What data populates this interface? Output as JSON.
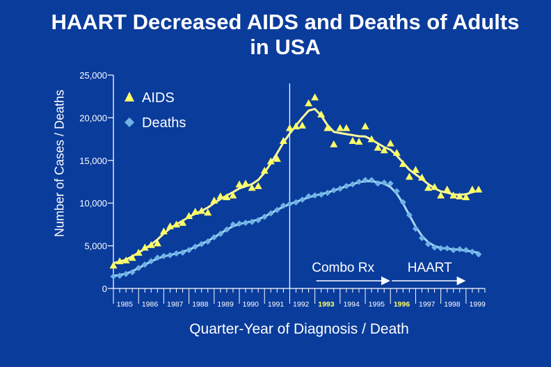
{
  "chart_data": {
    "type": "line",
    "title": "HAART Decreased AIDS and Deaths of Adults in USA",
    "xlabel": "Quarter-Year of Diagnosis / Death",
    "ylabel": "Number of Cases / Deaths",
    "ylim": [
      0,
      25000
    ],
    "xlim": [
      1985,
      1999.75
    ],
    "yticks": [
      "0",
      "5,000",
      "10,000",
      "15,000",
      "20,000",
      "25,000"
    ],
    "ytick_values": [
      0,
      5000,
      10000,
      15000,
      20000,
      25000
    ],
    "xticks": [
      "1985",
      "1986",
      "1987",
      "1988",
      "1989",
      "1990",
      "1991",
      "1992",
      "1993",
      "1994",
      "1995",
      "1996",
      "1997",
      "1998",
      "1999"
    ],
    "highlight_years": [
      "1993",
      "1996"
    ],
    "grid": false,
    "legend_position": "top-left",
    "annotations": [
      {
        "text": "Combo Rx",
        "x_start": 1993.0,
        "x_end": 1995.9
      },
      {
        "text": "HAART",
        "x_start": 1996.0,
        "x_end": 1998.9
      }
    ],
    "vertical_line_x": 1992.0,
    "series": [
      {
        "name": "AIDS",
        "marker": "triangle",
        "color": "#ffff66",
        "x": [
          1985.0,
          1985.25,
          1985.5,
          1985.75,
          1986.0,
          1986.25,
          1986.5,
          1986.75,
          1987.0,
          1987.25,
          1987.5,
          1987.75,
          1988.0,
          1988.25,
          1988.5,
          1988.75,
          1989.0,
          1989.25,
          1989.5,
          1989.75,
          1990.0,
          1990.25,
          1990.5,
          1990.75,
          1991.0,
          1991.25,
          1991.5,
          1991.75,
          1992.0,
          1992.25,
          1992.5,
          1992.75,
          1993.0,
          1993.25,
          1993.5,
          1993.75,
          1994.0,
          1994.25,
          1994.5,
          1994.75,
          1995.0,
          1995.25,
          1995.5,
          1995.75,
          1996.0,
          1996.25,
          1996.5,
          1996.75,
          1997.0,
          1997.25,
          1997.5,
          1997.75,
          1998.0,
          1998.25,
          1998.5,
          1998.75,
          1999.0,
          1999.25,
          1999.5
        ],
        "y": [
          2700,
          3200,
          3300,
          3600,
          4200,
          4800,
          5100,
          5300,
          6700,
          7300,
          7500,
          7700,
          8500,
          9000,
          9100,
          8900,
          10300,
          10800,
          10700,
          10900,
          12200,
          12300,
          11800,
          12000,
          13800,
          14900,
          15200,
          17300,
          18800,
          19000,
          19100,
          21700,
          22400,
          20400,
          18800,
          16900,
          18800,
          18800,
          17300,
          17200,
          19000,
          17500,
          16500,
          16200,
          17000,
          15900,
          14600,
          13100,
          13900,
          13000,
          11800,
          11900,
          10900,
          11600,
          10900,
          10800,
          10700,
          11600,
          11600
        ]
      },
      {
        "name": "Deaths",
        "marker": "diamond",
        "color": "#6eb4e6",
        "x": [
          1985.0,
          1985.25,
          1985.5,
          1985.75,
          1986.0,
          1986.25,
          1986.5,
          1986.75,
          1987.0,
          1987.25,
          1987.5,
          1987.75,
          1988.0,
          1988.25,
          1988.5,
          1988.75,
          1989.0,
          1989.25,
          1989.5,
          1989.75,
          1990.0,
          1990.25,
          1990.5,
          1990.75,
          1991.0,
          1991.25,
          1991.5,
          1991.75,
          1992.0,
          1992.25,
          1992.5,
          1992.75,
          1993.0,
          1993.25,
          1993.5,
          1993.75,
          1994.0,
          1994.25,
          1994.5,
          1994.75,
          1995.0,
          1995.25,
          1995.5,
          1995.75,
          1996.0,
          1996.25,
          1996.5,
          1996.75,
          1997.0,
          1997.25,
          1997.5,
          1997.75,
          1998.0,
          1998.25,
          1998.5,
          1998.75,
          1999.0,
          1999.25,
          1999.5
        ],
        "y": [
          1400,
          1500,
          1700,
          1900,
          2400,
          2800,
          3200,
          3600,
          3800,
          3900,
          4100,
          4200,
          4500,
          4900,
          5200,
          5500,
          6000,
          6400,
          6900,
          7500,
          7600,
          7700,
          7800,
          8000,
          8400,
          8800,
          9200,
          9700,
          9900,
          10100,
          10400,
          10800,
          10900,
          11000,
          11200,
          11500,
          11700,
          12000,
          12200,
          12500,
          12700,
          12700,
          12300,
          12400,
          12300,
          11400,
          10100,
          8600,
          7000,
          5900,
          5200,
          4800,
          4700,
          4700,
          4500,
          4600,
          4500,
          4300,
          4000
        ]
      }
    ]
  }
}
